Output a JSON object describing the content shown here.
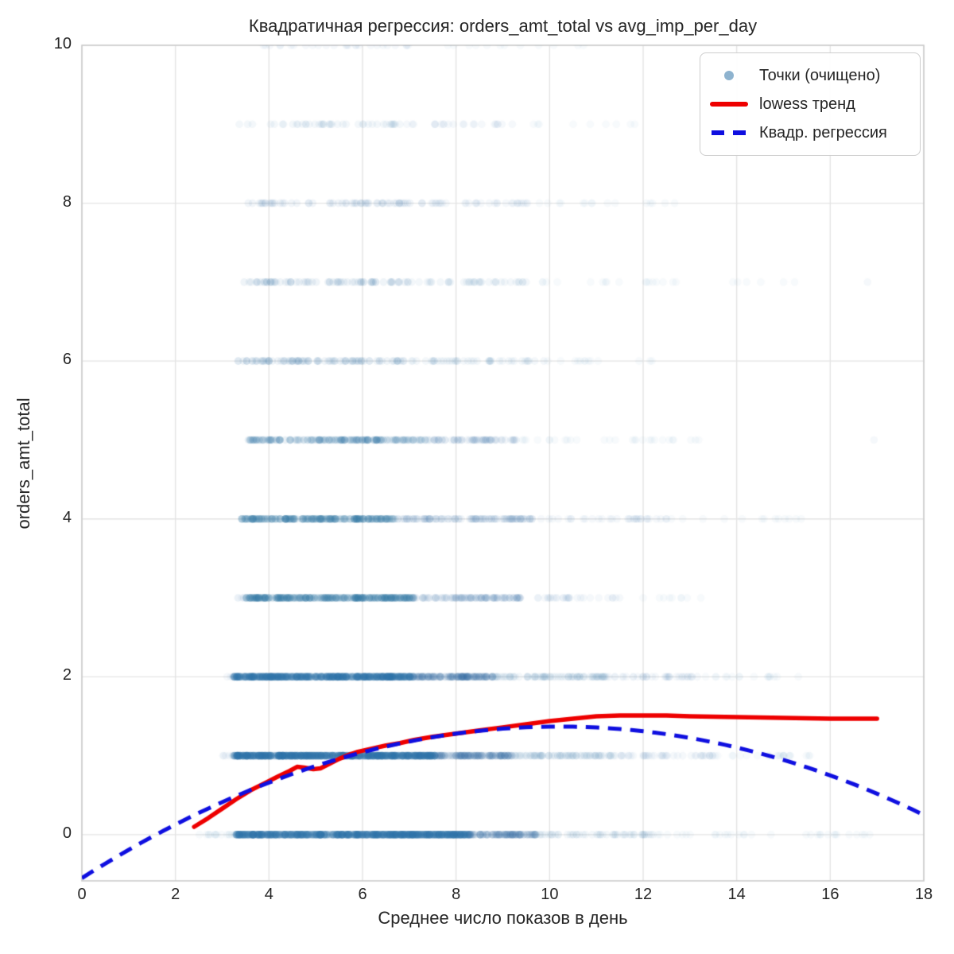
{
  "figure": {
    "background": "#ffffff"
  },
  "chart_data": {
    "type": "scatter",
    "title": "Квадратичная регрессия: orders_amt_total vs avg_imp_per_day",
    "xlabel": "Среднее число показов в день",
    "ylabel": "orders_amt_total",
    "xlim": [
      0,
      18
    ],
    "ylim": [
      -0.585,
      10
    ],
    "xticks": [
      0,
      2,
      4,
      6,
      8,
      10,
      12,
      14,
      16,
      18
    ],
    "yticks": [
      0,
      2,
      4,
      6,
      8,
      10
    ],
    "grid": true,
    "colors": {
      "scatter": "#3274a8",
      "lowess": "#ee0000",
      "quadratic": "#0f0fe0",
      "grid": "#e4e4e4",
      "spine": "#cccccc",
      "text": "#262626"
    },
    "marker": {
      "radius_px": 4.8
    },
    "random_seed": 12345,
    "legend": {
      "position": "upper right",
      "entries": [
        {
          "label": "Точки (очищено)",
          "marker": "dot",
          "alpha": 0.55
        },
        {
          "label": "lowess тренд",
          "marker": "solid-line"
        },
        {
          "label": "Квадр. регрессия",
          "marker": "dashed-line"
        }
      ]
    },
    "scatter_rows": [
      {
        "y": 0,
        "segments": [
          [
            2.45,
            3.3,
            18,
            0.04
          ],
          [
            3.3,
            8.3,
            650,
            0.13
          ],
          [
            8.3,
            9.7,
            100,
            0.09
          ],
          [
            9.7,
            12.3,
            50,
            0.06
          ],
          [
            12.3,
            16.9,
            32,
            0.04
          ]
        ]
      },
      {
        "y": 1,
        "segments": [
          [
            3.0,
            3.25,
            8,
            0.05
          ],
          [
            3.25,
            7.6,
            650,
            0.13
          ],
          [
            7.6,
            9.2,
            130,
            0.09
          ],
          [
            9.2,
            11.5,
            80,
            0.06
          ],
          [
            11.5,
            13.5,
            40,
            0.05
          ],
          [
            13.5,
            15.6,
            22,
            0.04
          ]
        ]
      },
      {
        "y": 2,
        "segments": [
          [
            3.05,
            3.25,
            6,
            0.05
          ],
          [
            3.25,
            7.1,
            480,
            0.13
          ],
          [
            7.1,
            8.8,
            140,
            0.09
          ],
          [
            8.8,
            11.2,
            80,
            0.06
          ],
          [
            11.2,
            13.2,
            36,
            0.05
          ],
          [
            13.2,
            15.6,
            16,
            0.04
          ]
        ]
      },
      {
        "y": 3,
        "segments": [
          [
            3.3,
            3.5,
            5,
            0.05
          ],
          [
            3.5,
            7.1,
            300,
            0.11
          ],
          [
            7.1,
            9.4,
            100,
            0.07
          ],
          [
            9.4,
            11.6,
            28,
            0.05
          ],
          [
            11.6,
            13.3,
            9,
            0.04
          ]
        ]
      },
      {
        "y": 4,
        "segments": [
          [
            3.4,
            6.7,
            220,
            0.11
          ],
          [
            6.7,
            9.7,
            100,
            0.07
          ],
          [
            9.7,
            12.6,
            32,
            0.05
          ],
          [
            12.6,
            15.4,
            13,
            0.04
          ]
        ]
      },
      {
        "y": 5,
        "segments": [
          [
            3.55,
            7.4,
            170,
            0.1
          ],
          [
            7.4,
            9.4,
            60,
            0.07
          ],
          [
            9.4,
            13.2,
            28,
            0.04
          ],
          [
            16.85,
            16.95,
            1,
            0.05
          ]
        ]
      },
      {
        "y": 6,
        "segments": [
          [
            3.3,
            6.9,
            90,
            0.08
          ],
          [
            6.9,
            9.9,
            42,
            0.06
          ],
          [
            9.9,
            12.4,
            13,
            0.04
          ]
        ]
      },
      {
        "y": 7,
        "segments": [
          [
            3.4,
            7.0,
            70,
            0.08
          ],
          [
            7.0,
            9.7,
            36,
            0.06
          ],
          [
            9.7,
            12.7,
            17,
            0.04
          ],
          [
            13.4,
            15.4,
            6,
            0.04
          ],
          [
            16.7,
            16.8,
            1,
            0.05
          ]
        ]
      },
      {
        "y": 8,
        "segments": [
          [
            3.5,
            7.3,
            58,
            0.07
          ],
          [
            7.3,
            9.6,
            30,
            0.05
          ],
          [
            9.6,
            12.7,
            15,
            0.04
          ]
        ]
      },
      {
        "y": 9,
        "segments": [
          [
            3.3,
            6.9,
            42,
            0.06
          ],
          [
            6.9,
            9.3,
            22,
            0.05
          ],
          [
            9.3,
            12.2,
            9,
            0.04
          ]
        ]
      },
      {
        "y": 10,
        "segments": [
          [
            3.5,
            7.1,
            26,
            0.05
          ],
          [
            7.2,
            11.0,
            12,
            0.04
          ]
        ]
      }
    ],
    "lowess": {
      "name": "lowess тренд",
      "points": [
        [
          2.4,
          0.1
        ],
        [
          2.7,
          0.21
        ],
        [
          3.0,
          0.33
        ],
        [
          3.3,
          0.45
        ],
        [
          3.6,
          0.56
        ],
        [
          3.9,
          0.65
        ],
        [
          4.2,
          0.74
        ],
        [
          4.45,
          0.81
        ],
        [
          4.6,
          0.86
        ],
        [
          4.75,
          0.85
        ],
        [
          4.95,
          0.83
        ],
        [
          5.1,
          0.84
        ],
        [
          5.3,
          0.9
        ],
        [
          5.5,
          0.96
        ],
        [
          5.7,
          1.01
        ],
        [
          5.9,
          1.05
        ],
        [
          6.2,
          1.09
        ],
        [
          6.5,
          1.13
        ],
        [
          6.8,
          1.16
        ],
        [
          7.1,
          1.2
        ],
        [
          7.5,
          1.24
        ],
        [
          8.0,
          1.28
        ],
        [
          8.5,
          1.32
        ],
        [
          9.0,
          1.36
        ],
        [
          9.5,
          1.4
        ],
        [
          10.0,
          1.44
        ],
        [
          10.5,
          1.47
        ],
        [
          11.0,
          1.5
        ],
        [
          11.5,
          1.51
        ],
        [
          12.0,
          1.51
        ],
        [
          12.5,
          1.51
        ],
        [
          13.0,
          1.5
        ],
        [
          14.0,
          1.49
        ],
        [
          15.0,
          1.48
        ],
        [
          16.0,
          1.47
        ],
        [
          17.0,
          1.47
        ]
      ]
    },
    "quadratic": {
      "name": "Квадр. регрессия",
      "coefficients": {
        "a": -0.01843,
        "b": 0.3762,
        "c": -0.55
      },
      "x_range": [
        0,
        18
      ],
      "vertex": [
        10.2,
        1.37
      ]
    }
  }
}
